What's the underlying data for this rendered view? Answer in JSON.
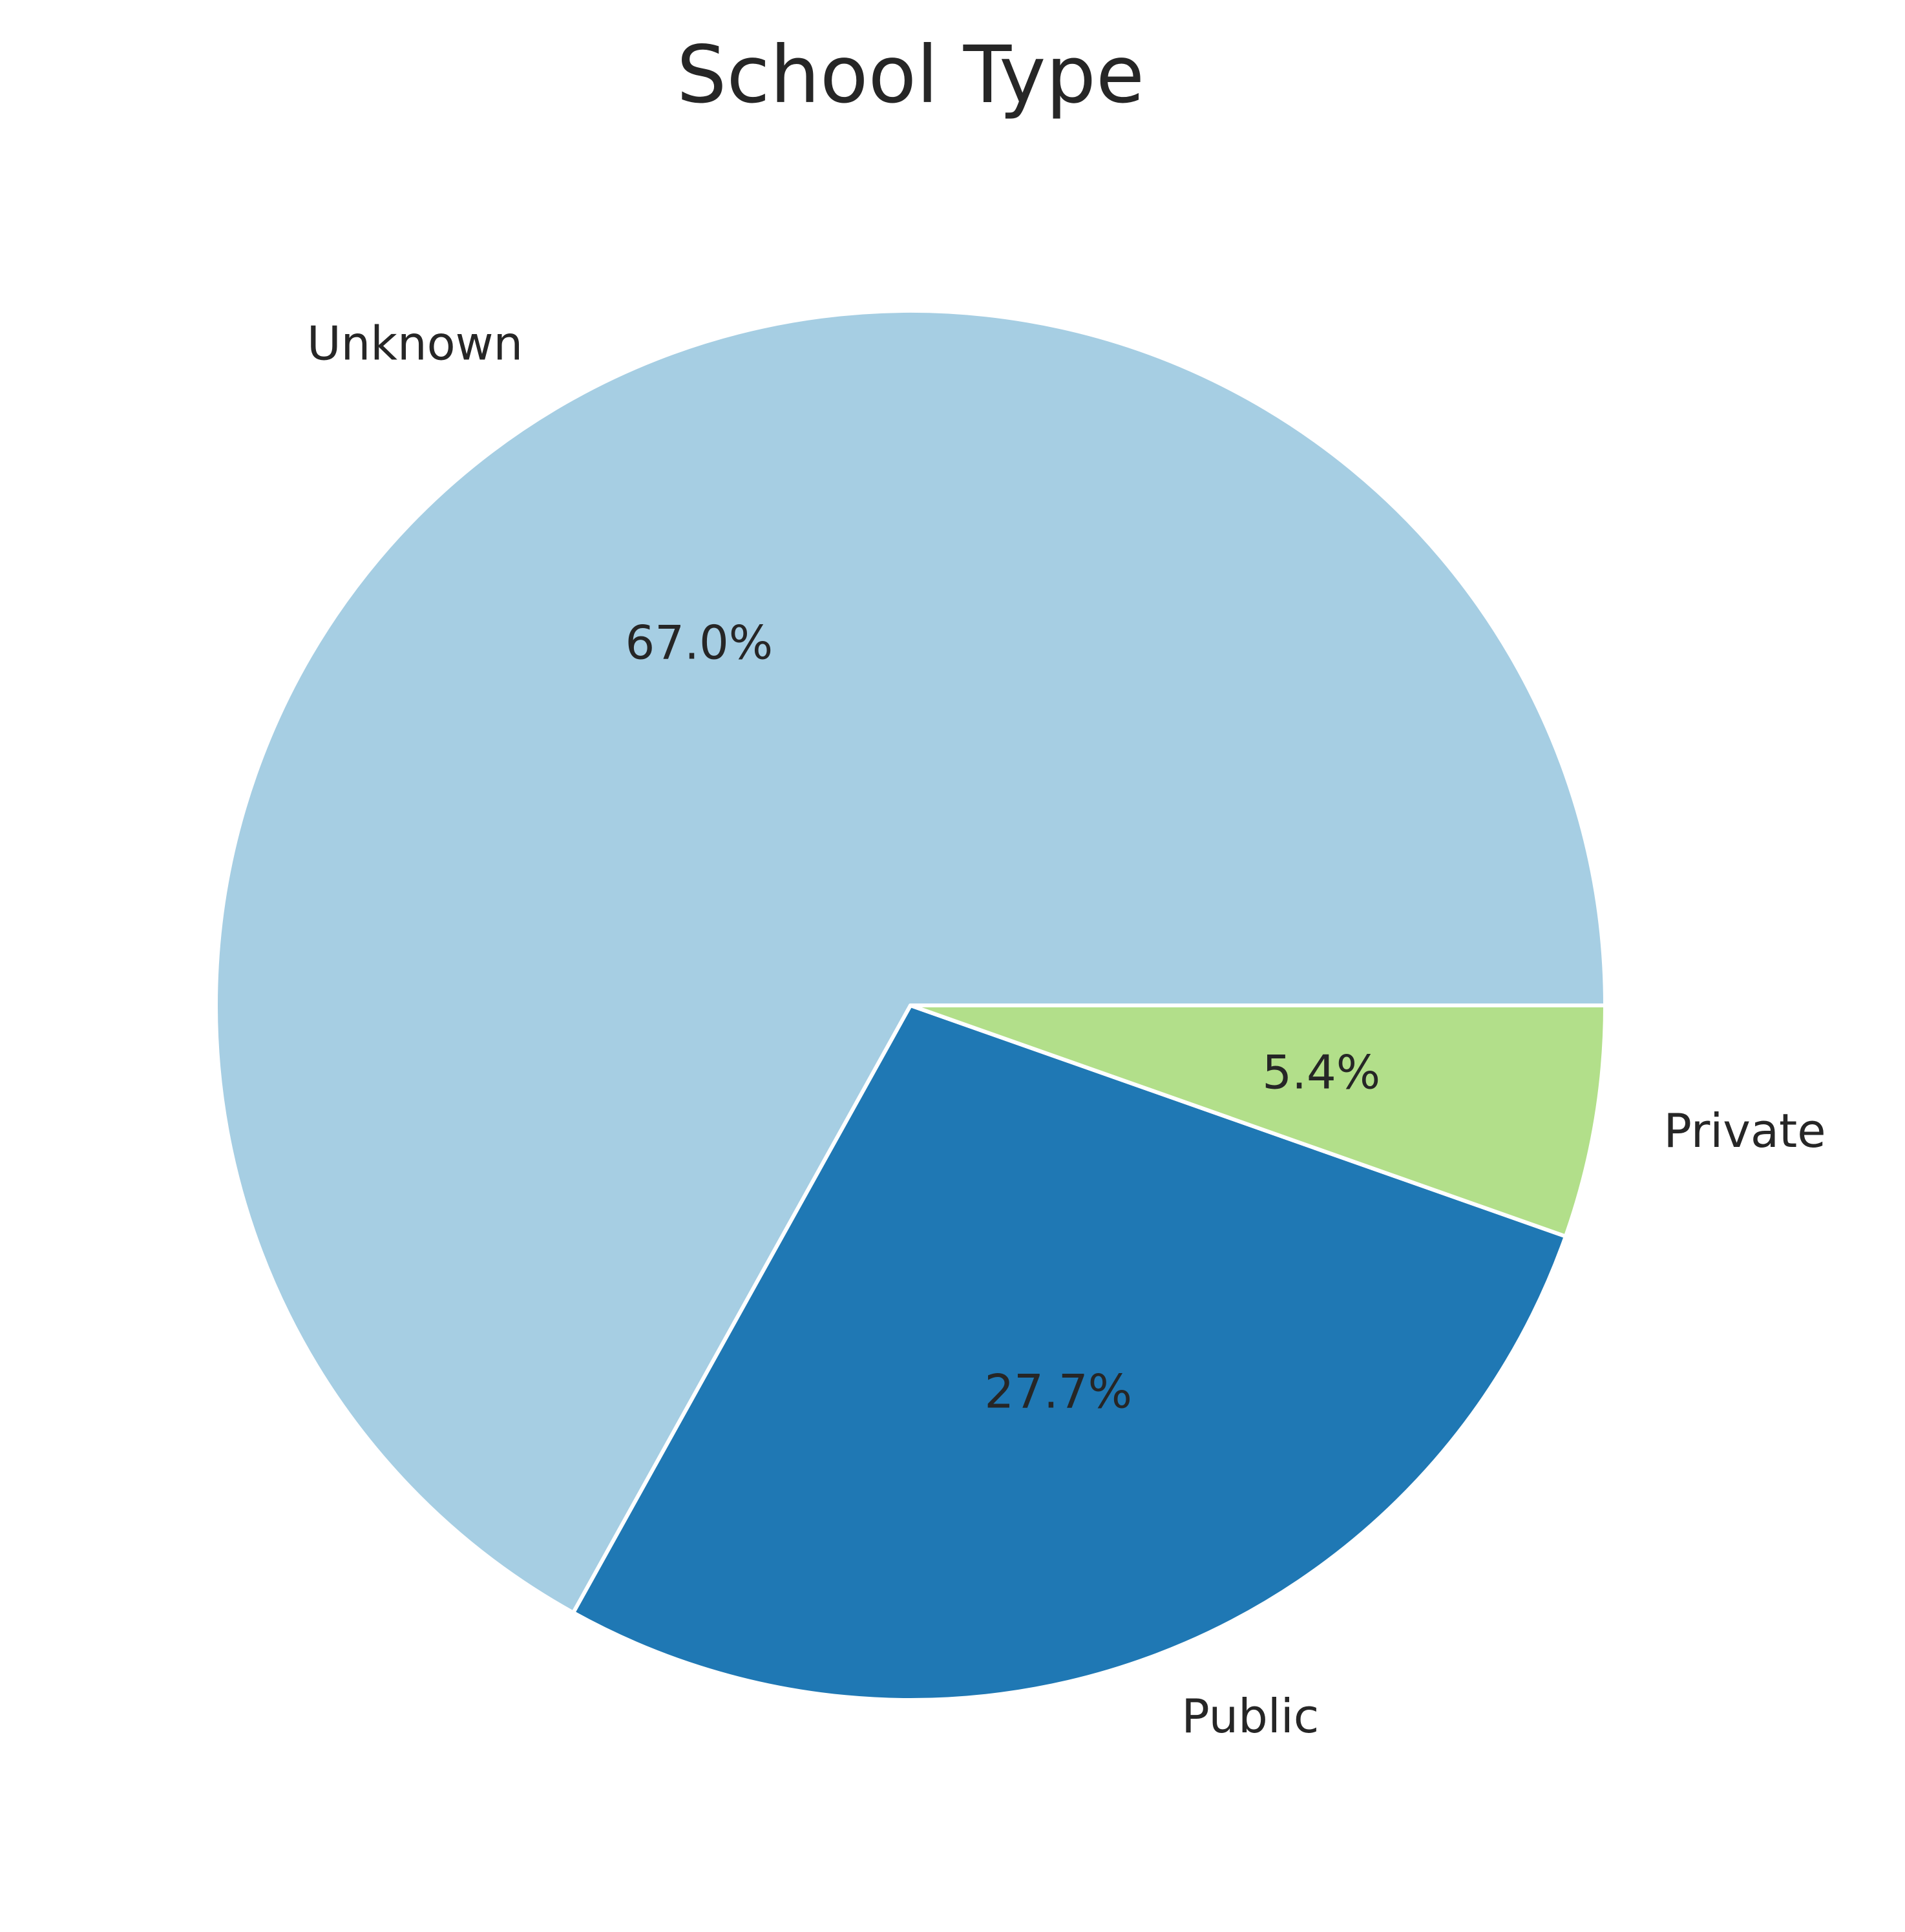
{
  "chart_data": {
    "type": "pie",
    "title": "School Type",
    "categories": [
      "Unknown",
      "Public",
      "Private"
    ],
    "values": [
      67.0,
      27.7,
      5.4
    ],
    "value_labels": [
      "67.0%",
      "27.7%",
      "5.4%"
    ],
    "colors": [
      "#a6cee3",
      "#1f78b4",
      "#b2df8a"
    ],
    "edge_color": "#ffffff",
    "start_angle_deg": 0,
    "direction": "counterclockwise"
  }
}
